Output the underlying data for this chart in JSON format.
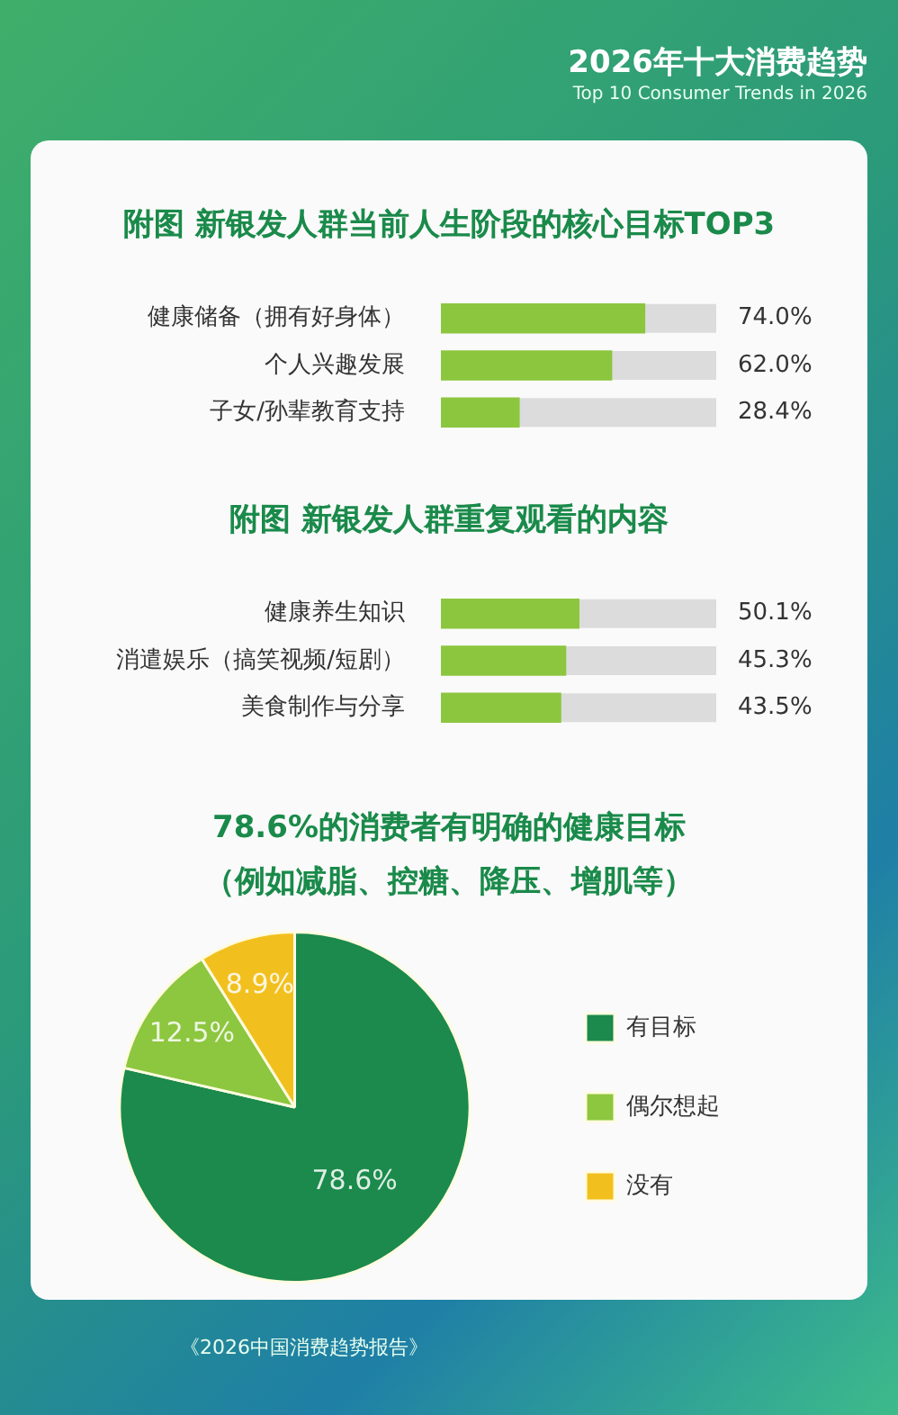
{
  "chart_data": [
    {
      "type": "other",
      "title": "2026年十大消费趋势",
      "subtitle": "Top 10 Consumer Trends in 2026"
    },
    {
      "type": "bar",
      "orientation": "horizontal",
      "title": "附图 新银发人群当前人生阶段的核心目标TOP3",
      "categories": [
        "健康储备（拥有好身体）",
        "个人兴趣发展",
        "子女/孙辈教育支持"
      ],
      "values": [
        74.0,
        62.0,
        28.4
      ],
      "value_labels": [
        "74.0%",
        "62.0%",
        "28.4%"
      ],
      "color": "#8cc63f",
      "xlim": [
        0,
        100
      ],
      "tick_labels": "y"
    },
    {
      "type": "bar",
      "orientation": "horizontal",
      "title": "附图 新银发人群重复观看的内容",
      "categories": [
        "健康养生知识",
        "消遣娱乐（搞笑视频/短剧）",
        "美食制作与分享"
      ],
      "values": [
        50.1,
        45.3,
        43.5
      ],
      "value_labels": [
        "50.1%",
        "45.3%",
        "43.5%"
      ],
      "color": "#8cc63f",
      "xlim": [
        0,
        100
      ],
      "tick_labels": "y"
    },
    {
      "type": "pie",
      "title": "78.6%的消费者有明确的健康目标（例如减脂、控糖、降压、增肌等）",
      "categories": [
        "有目标",
        "偶尔想起",
        "没有"
      ],
      "values": [
        78.6,
        12.5,
        8.9
      ],
      "value_labels": [
        "78.6%",
        "12.5%",
        "8.9%"
      ],
      "colors": [
        "#1b8a4c",
        "#8dc63f",
        "#f2c01e"
      ],
      "legend": "right",
      "annotations": [
        "《2026中国消费趋势报告》"
      ]
    }
  ]
}
